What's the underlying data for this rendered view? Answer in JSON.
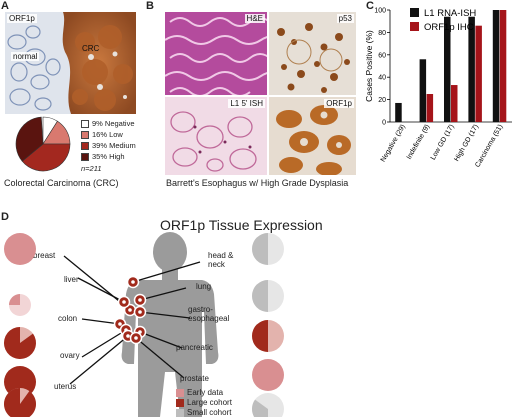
{
  "panel_a": {
    "letter": "A",
    "image_labels": {
      "marker": "ORF1p",
      "normal": "normal",
      "tumor": "CRC"
    },
    "pie_legend": [
      {
        "label": "9% Negative",
        "color": "#ffffff"
      },
      {
        "label": "16% Low",
        "color": "#d9796f"
      },
      {
        "label": "39% Medium",
        "color": "#a3281f"
      },
      {
        "label": "35% High",
        "color": "#5a140f"
      }
    ],
    "n_label": "n=211",
    "caption": "Colorectal Carcinoma (CRC)"
  },
  "panel_b": {
    "letter": "B",
    "image_labels": {
      "he": "H&E",
      "p53": "p53",
      "ish": "L1 5' ISH",
      "orf1p": "ORF1p"
    },
    "caption": "Barrett's Esophagus w/ High Grade Dysplasia"
  },
  "panel_c": {
    "letter": "C"
  },
  "chart_data": {
    "type": "bar",
    "ylabel": "Cases Positive (%)",
    "ylim": [
      0,
      100
    ],
    "yticks": [
      0,
      20,
      40,
      60,
      80,
      100
    ],
    "categories": [
      "Negative (29)",
      "Indefinite (9)",
      "Low GD (17)",
      "High GD (17)",
      "Carcinoma (51)"
    ],
    "series": [
      {
        "name": "L1 RNA-ISH",
        "color": "#111111",
        "values": [
          17,
          56,
          94,
          94,
          100
        ]
      },
      {
        "name": "ORF1p IHC",
        "color": "#a5141a",
        "values": [
          0,
          25,
          33,
          86,
          100
        ]
      }
    ],
    "legend_position": "top-right"
  },
  "panel_d": {
    "letter": "D",
    "title": "ORF1p Tissue Expression",
    "organs_left": [
      "breast",
      "liver",
      "colon",
      "ovary",
      "uterus"
    ],
    "organs_right": [
      "head &\nneck",
      "lung",
      "gastro-\nesophageal",
      "pancreatic",
      "prostate"
    ],
    "legend": [
      {
        "label": "Early data",
        "color": "#d98f91"
      },
      {
        "label": "Large cohort",
        "color": "#a12a1c"
      },
      {
        "label": "Small cohort",
        "color": "#bdbdbd"
      }
    ],
    "pies_left": [
      {
        "type": "early",
        "fraction": 1.0
      },
      {
        "type": "early",
        "fraction": 0.25
      },
      {
        "type": "large",
        "fraction": 0.85
      },
      {
        "type": "large",
        "fraction": 1.0
      },
      {
        "type": "large",
        "fraction": 0.9
      }
    ],
    "pies_right": [
      {
        "type": "small",
        "fraction": 0.5
      },
      {
        "type": "small",
        "fraction": 0.5
      },
      {
        "type": "large",
        "fraction": 0.5
      },
      {
        "type": "early",
        "fraction": 1.0
      },
      {
        "type": "small",
        "fraction": 0.35
      }
    ]
  }
}
